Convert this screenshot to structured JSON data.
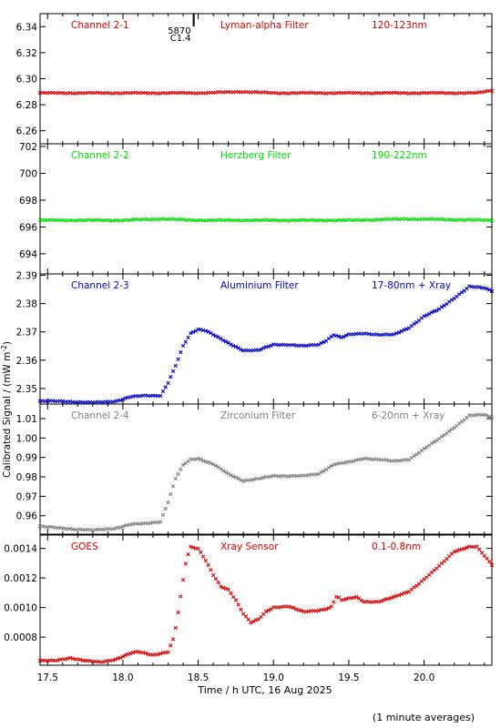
{
  "figure": {
    "xlabel": "Time / h UTC, 16 Aug 2025",
    "ylabel": "Calibrated Signal / (mW m",
    "ylabel_sup": "-2",
    "ylabel_close": ")",
    "footnote": "(1 minute averages)",
    "xlim": [
      17.45,
      20.45
    ],
    "xticks": [
      "17.5",
      "18.0",
      "18.5",
      "19.0",
      "19.5",
      "20.0"
    ],
    "flare_marker": {
      "time": 18.47,
      "label_top": "5870",
      "label_bottom": "C1.4"
    }
  },
  "chart_data": [
    {
      "type": "scatter",
      "channel": "Channel 2-1",
      "filter": "Lyman-alpha Filter",
      "band": "120-123nm",
      "color": "#dd0000",
      "ylim": [
        6.25,
        6.35
      ],
      "yticks": [
        "6.26",
        "6.28",
        "6.30",
        "6.32",
        "6.34"
      ],
      "x": [
        17.45,
        18.0,
        18.5,
        18.8,
        19.0,
        19.5,
        20.0,
        20.35,
        20.45
      ],
      "y": [
        6.289,
        6.289,
        6.289,
        6.29,
        6.289,
        6.289,
        6.289,
        6.289,
        6.291
      ]
    },
    {
      "type": "scatter",
      "channel": "Channel 2-2",
      "filter": "Herzberg Filter",
      "band": "190-222nm",
      "color": "#00dd00",
      "ylim": [
        692.5,
        702.2
      ],
      "yticks": [
        "694",
        "696",
        "698",
        "700",
        "702"
      ],
      "x": [
        17.45,
        18.0,
        18.25,
        18.5,
        19.0,
        19.5,
        19.9,
        20.45
      ],
      "y": [
        696.5,
        696.5,
        696.6,
        696.5,
        696.5,
        696.5,
        696.6,
        696.5
      ]
    },
    {
      "type": "scatter",
      "channel": "Channel 2-3",
      "filter": "Aluminium Filter",
      "band": "17-80nm + Xray",
      "color": "#0000cc",
      "ylim": [
        2.3445,
        2.3905
      ],
      "yticks": [
        "2.35",
        "2.36",
        "2.37",
        "2.38",
        "2.39"
      ],
      "x": [
        17.45,
        17.6,
        17.8,
        17.95,
        18.05,
        18.15,
        18.25,
        18.3,
        18.35,
        18.4,
        18.45,
        18.5,
        18.55,
        18.6,
        18.7,
        18.8,
        18.9,
        19.0,
        19.1,
        19.2,
        19.3,
        19.35,
        19.4,
        19.45,
        19.5,
        19.6,
        19.7,
        19.8,
        19.9,
        20.0,
        20.1,
        20.2,
        20.3,
        20.4,
        20.45
      ],
      "y": [
        2.3455,
        2.3455,
        2.345,
        2.3455,
        2.347,
        2.3475,
        2.3475,
        2.352,
        2.358,
        2.365,
        2.3695,
        2.371,
        2.3705,
        2.369,
        2.366,
        2.3635,
        2.3635,
        2.3655,
        2.3655,
        2.365,
        2.3655,
        2.367,
        2.369,
        2.368,
        2.369,
        2.3695,
        2.369,
        2.369,
        2.3715,
        2.3755,
        2.378,
        2.382,
        2.386,
        2.3855,
        2.3845
      ]
    },
    {
      "type": "scatter",
      "channel": "Channel 2-4",
      "filter": "Zirconium Filter",
      "band": "6-20nm + Xray",
      "color": "#808080",
      "ylim": [
        0.9505,
        1.0175
      ],
      "yticks": [
        "0.96",
        "0.97",
        "0.98",
        "0.99",
        "1.00",
        "1.01"
      ],
      "x": [
        17.45,
        17.6,
        17.8,
        17.95,
        18.05,
        18.15,
        18.25,
        18.3,
        18.35,
        18.4,
        18.45,
        18.5,
        18.55,
        18.6,
        18.7,
        18.8,
        18.9,
        19.0,
        19.1,
        19.2,
        19.3,
        19.4,
        19.5,
        19.6,
        19.7,
        19.8,
        19.9,
        20.0,
        20.1,
        20.2,
        20.3,
        20.4,
        20.45
      ],
      "y": [
        0.9545,
        0.9535,
        0.9525,
        0.9535,
        0.9555,
        0.956,
        0.957,
        0.967,
        0.979,
        0.986,
        0.989,
        0.9895,
        0.988,
        0.9865,
        0.9815,
        0.978,
        0.979,
        0.9805,
        0.9805,
        0.9805,
        0.9815,
        0.9865,
        0.9875,
        0.9895,
        0.989,
        0.988,
        0.989,
        0.9945,
        0.9995,
        1.0055,
        1.0115,
        1.012,
        1.0105
      ]
    },
    {
      "type": "scatter",
      "channel": "GOES",
      "filter": "Xray Sensor",
      "band": "0.1-0.8nm",
      "color": "#dd0000",
      "ylim": [
        0.00061,
        0.00149
      ],
      "yticks": [
        "0.0008",
        "0.0010",
        "0.0012",
        "0.0014"
      ],
      "x": [
        17.45,
        17.55,
        17.65,
        17.75,
        17.85,
        17.95,
        18.05,
        18.1,
        18.2,
        18.3,
        18.34,
        18.38,
        18.42,
        18.45,
        18.5,
        18.55,
        18.6,
        18.65,
        18.7,
        18.75,
        18.8,
        18.85,
        18.9,
        18.95,
        19.0,
        19.1,
        19.2,
        19.3,
        19.38,
        19.42,
        19.45,
        19.5,
        19.55,
        19.6,
        19.7,
        19.8,
        19.9,
        20.0,
        20.1,
        20.2,
        20.3,
        20.35,
        20.4,
        20.45
      ],
      "y": [
        0.00064,
        0.00064,
        0.00066,
        0.00064,
        0.00063,
        0.00065,
        0.00069,
        0.0007,
        0.00068,
        0.0007,
        0.0008,
        0.00105,
        0.00132,
        0.00141,
        0.0014,
        0.00132,
        0.00122,
        0.00114,
        0.00112,
        0.00105,
        0.00096,
        0.0009,
        0.00092,
        0.00097,
        0.001,
        0.00101,
        0.00097,
        0.00098,
        0.001,
        0.00108,
        0.00105,
        0.00106,
        0.00107,
        0.00104,
        0.00104,
        0.00107,
        0.00111,
        0.00119,
        0.00128,
        0.00138,
        0.00141,
        0.00141,
        0.00135,
        0.00129
      ]
    }
  ]
}
